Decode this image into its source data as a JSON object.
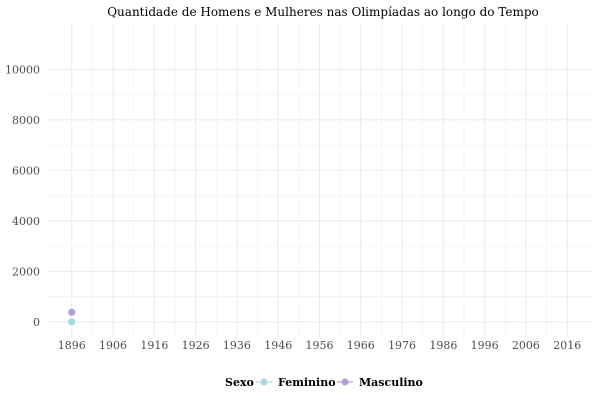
{
  "chart_data": {
    "type": "line",
    "title": "Quantidade de Homens e Mulheres nas Olimpíadas ao longo do Tempo",
    "xlabel": "",
    "ylabel": "",
    "x_ticks": [
      1896,
      1906,
      1916,
      1926,
      1936,
      1946,
      1956,
      1966,
      1976,
      1986,
      1996,
      2006,
      2016
    ],
    "y_ticks": [
      0,
      2000,
      4000,
      6000,
      8000,
      10000
    ],
    "xlim": [
      1890,
      2022
    ],
    "ylim": [
      -600,
      11800
    ],
    "grid": true,
    "legend": {
      "title": "Sexo",
      "position": "bottom"
    },
    "series": [
      {
        "name": "Feminino",
        "color": "#a8dbe0",
        "points": [
          {
            "x": 1896,
            "y": 0
          }
        ]
      },
      {
        "name": "Masculino",
        "color": "#b39ddb",
        "points": [
          {
            "x": 1896,
            "y": 380
          }
        ]
      }
    ]
  }
}
